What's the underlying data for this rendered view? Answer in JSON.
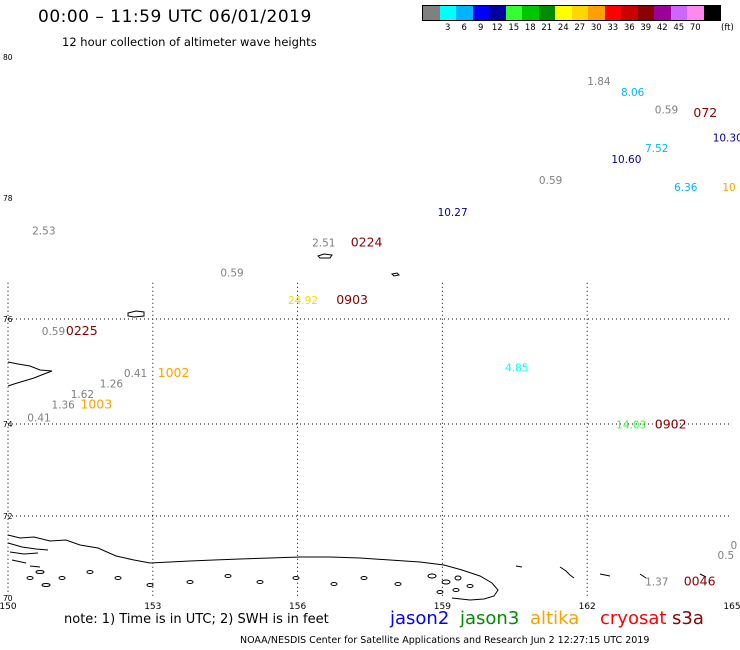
{
  "header": {
    "title": "00:00 – 11:59 UTC 06/01/2019",
    "subtitle": "12 hour collection of altimeter wave heights"
  },
  "color_scale": {
    "unit_label": "(ft)",
    "steps": [
      {
        "label": "",
        "color": "#808080"
      },
      {
        "label": "3",
        "color": "#00ffff"
      },
      {
        "label": "6",
        "color": "#00b4ff"
      },
      {
        "label": "9",
        "color": "#0000ff"
      },
      {
        "label": "12",
        "color": "#0000a0"
      },
      {
        "label": "15",
        "color": "#33ff33"
      },
      {
        "label": "18",
        "color": "#00c800"
      },
      {
        "label": "21",
        "color": "#008c00"
      },
      {
        "label": "24",
        "color": "#ffff00"
      },
      {
        "label": "27",
        "color": "#ffd700"
      },
      {
        "label": "30",
        "color": "#ffa000"
      },
      {
        "label": "33",
        "color": "#ff0000"
      },
      {
        "label": "36",
        "color": "#c80000"
      },
      {
        "label": "39",
        "color": "#8b0000"
      },
      {
        "label": "42",
        "color": "#9b009b"
      },
      {
        "label": "45",
        "color": "#cc66ff"
      },
      {
        "label": "70",
        "color": "#ff88ee"
      },
      {
        "label": "",
        "color": "#000000"
      }
    ]
  },
  "map": {
    "lon_labels": [
      {
        "text": "150",
        "lon": 150
      },
      {
        "text": "153",
        "lon": 153
      },
      {
        "text": "156",
        "lon": 156
      },
      {
        "text": "159",
        "lon": 159
      },
      {
        "text": "162",
        "lon": 162
      },
      {
        "text": "165",
        "lon": 165
      }
    ],
    "lat_labels": [
      {
        "text": "80",
        "lat": 80
      },
      {
        "text": "78",
        "lat": 78
      },
      {
        "text": "76",
        "lat": 76
      },
      {
        "text": "74",
        "lat": 74
      },
      {
        "text": "72",
        "lat": 72
      },
      {
        "text": "70",
        "lat": 70
      }
    ],
    "observations": [
      {
        "text": "1.84",
        "color": "#808080",
        "lon": 162.0,
        "lat": 79.6
      },
      {
        "text": "8.06",
        "color": "#00b4ff",
        "lon": 162.7,
        "lat": 79.45
      },
      {
        "text": "0.59",
        "color": "#808080",
        "lon": 163.4,
        "lat": 79.2
      },
      {
        "text": "072",
        "color": "#8b0000",
        "lon": 164.2,
        "lat": 79.15
      },
      {
        "text": "10.30",
        "color": "#0000a0",
        "lon": 164.6,
        "lat": 78.8
      },
      {
        "text": "7.52",
        "color": "#00b4ff",
        "lon": 163.2,
        "lat": 78.65
      },
      {
        "text": "10.60",
        "color": "#0000a0",
        "lon": 162.5,
        "lat": 78.5
      },
      {
        "text": "0.59",
        "color": "#808080",
        "lon": 161.0,
        "lat": 78.2
      },
      {
        "text": "6.36",
        "color": "#00b4ff",
        "lon": 163.8,
        "lat": 78.1
      },
      {
        "text": "10",
        "color": "#ffa000",
        "lon": 164.8,
        "lat": 78.1
      },
      {
        "text": "10.27",
        "color": "#0000a0",
        "lon": 158.9,
        "lat": 77.7
      },
      {
        "text": "2.53",
        "color": "#808080",
        "lon": 150.5,
        "lat": 77.4
      },
      {
        "text": "2.51",
        "color": "#808080",
        "lon": 156.3,
        "lat": 77.2
      },
      {
        "text": "0224",
        "color": "#8b0000",
        "lon": 157.1,
        "lat": 77.2
      },
      {
        "text": "0.59",
        "color": "#808080",
        "lon": 154.4,
        "lat": 76.7
      },
      {
        "text": "24.92",
        "color": "#ffd700",
        "lon": 155.8,
        "lat": 76.25
      },
      {
        "text": "0903",
        "color": "#8b0000",
        "lon": 156.8,
        "lat": 76.25
      },
      {
        "text": "0.59",
        "color": "#808080",
        "lon": 150.7,
        "lat": 75.7
      },
      {
        "text": "0225",
        "color": "#8b0000",
        "lon": 151.2,
        "lat": 75.7
      },
      {
        "text": "0.41",
        "color": "#808080",
        "lon": 152.4,
        "lat": 74.9
      },
      {
        "text": "1002",
        "color": "#ffa000",
        "lon": 153.1,
        "lat": 74.9
      },
      {
        "text": "4.85",
        "color": "#00ffff",
        "lon": 160.3,
        "lat": 75.0
      },
      {
        "text": "1.26",
        "color": "#808080",
        "lon": 151.9,
        "lat": 74.7
      },
      {
        "text": "1.62",
        "color": "#808080",
        "lon": 151.3,
        "lat": 74.5
      },
      {
        "text": "1.36",
        "color": "#808080",
        "lon": 150.9,
        "lat": 74.3
      },
      {
        "text": "1003",
        "color": "#ffa000",
        "lon": 151.5,
        "lat": 74.3
      },
      {
        "text": "0.41",
        "color": "#808080",
        "lon": 150.4,
        "lat": 74.05
      },
      {
        "text": "14.03",
        "color": "#33ff33",
        "lon": 162.6,
        "lat": 73.9
      },
      {
        "text": "0902",
        "color": "#8b0000",
        "lon": 163.4,
        "lat": 73.9
      },
      {
        "text": "0",
        "color": "#808080",
        "lon": 164.97,
        "lat": 71.2
      },
      {
        "text": "0.5",
        "color": "#808080",
        "lon": 164.7,
        "lat": 70.95
      },
      {
        "text": "1.37",
        "color": "#808080",
        "lon": 163.2,
        "lat": 70.3
      },
      {
        "text": "0046",
        "color": "#8b0000",
        "lon": 164.0,
        "lat": 70.3
      }
    ]
  },
  "footer": {
    "note": "note: 1) Time is in UTC; 2) SWH is in feet",
    "credit": "NOAA/NESDIS Center for Satellite Applications and Research   Jun  2 12:27:15 UTC 2019",
    "satellites": [
      {
        "name": "jason2",
        "color": "#0000ff"
      },
      {
        "name": "jason3",
        "color": "#008c00"
      },
      {
        "name": "altika",
        "color": "#ffa000"
      },
      {
        "name": "cryosat",
        "color": "#ff0000"
      },
      {
        "name": "s3a",
        "color": "#8b0000"
      }
    ]
  }
}
